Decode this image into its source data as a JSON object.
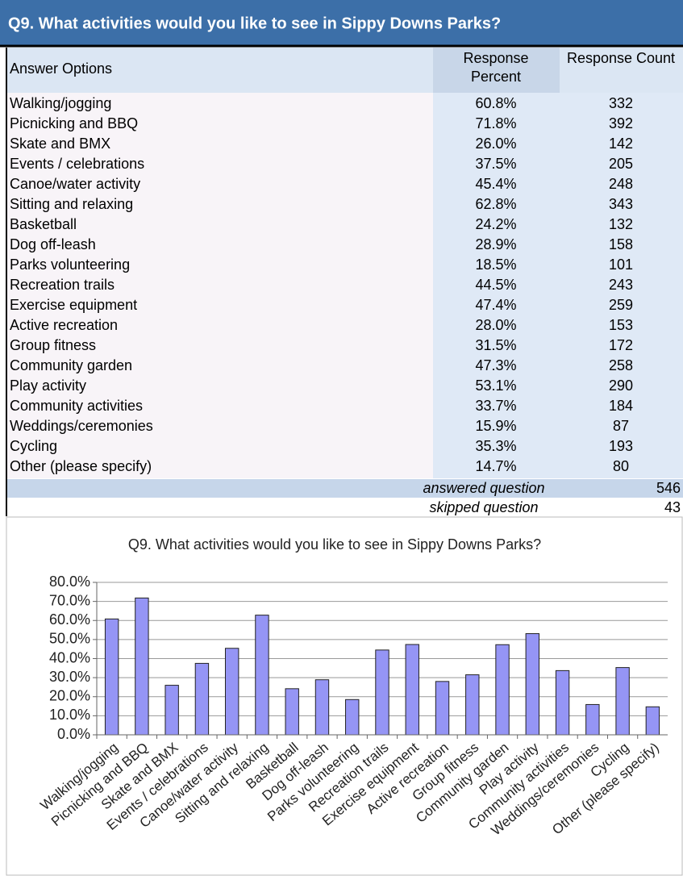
{
  "table": {
    "title": "Q9. What activities would you like to see in Sippy Downs Parks?",
    "headers": [
      "Answer Options",
      "Response Percent",
      "Response Count"
    ],
    "rows": [
      [
        "Walking/jogging",
        "60.8%",
        332
      ],
      [
        "Picnicking and BBQ",
        "71.8%",
        392
      ],
      [
        "Skate and BMX",
        "26.0%",
        142
      ],
      [
        "Events / celebrations",
        "37.5%",
        205
      ],
      [
        "Canoe/water activity",
        "45.4%",
        248
      ],
      [
        "Sitting and relaxing",
        "62.8%",
        343
      ],
      [
        "Basketball",
        "24.2%",
        132
      ],
      [
        "Dog off-leash",
        "28.9%",
        158
      ],
      [
        "Parks volunteering",
        "18.5%",
        101
      ],
      [
        "Recreation trails",
        "44.5%",
        243
      ],
      [
        "Exercise equipment",
        "47.4%",
        259
      ],
      [
        "Active recreation",
        "28.0%",
        153
      ],
      [
        "Group fitness",
        "31.5%",
        172
      ],
      [
        "Community garden",
        "47.3%",
        258
      ],
      [
        "Play activity",
        "53.1%",
        290
      ],
      [
        "Community activities",
        "33.7%",
        184
      ],
      [
        "Weddings/ceremonies",
        "15.9%",
        87
      ],
      [
        "Cycling",
        "35.3%",
        193
      ],
      [
        "Other (please specify)",
        "14.7%",
        80
      ]
    ],
    "footer": [
      [
        "answered question",
        546
      ],
      [
        "skipped question",
        43
      ]
    ]
  },
  "chart_data": {
    "type": "bar",
    "title": "Q9. What activities would you like to see in Sippy Downs Parks?",
    "categories": [
      "Walking/jogging",
      "Picnicking and BBQ",
      "Skate and BMX",
      "Events / celebrations",
      "Canoe/water activity",
      "Sitting and relaxing",
      "Basketball",
      "Dog off-leash",
      "Parks volunteering",
      "Recreation trails",
      "Exercise equipment",
      "Active recreation",
      "Group fitness",
      "Community garden",
      "Play activity",
      "Community activities",
      "Weddings/ceremonies",
      "Cycling",
      "Other (please specify)"
    ],
    "values": [
      60.8,
      71.8,
      26.0,
      37.5,
      45.4,
      62.8,
      24.2,
      28.9,
      18.5,
      44.5,
      47.4,
      28.0,
      31.5,
      47.3,
      53.1,
      33.7,
      15.9,
      35.3,
      14.7
    ],
    "color": "#9595f5",
    "ylim": [
      0,
      80
    ],
    "yticks": [
      {
        "value": 0,
        "label": "0.0%"
      },
      {
        "value": 10,
        "label": "10.0%"
      },
      {
        "value": 20,
        "label": "20.0%"
      },
      {
        "value": 30,
        "label": "30.0%"
      },
      {
        "value": 40,
        "label": "40.0%"
      },
      {
        "value": 50,
        "label": "50.0%"
      },
      {
        "value": 60,
        "label": "60.0%"
      },
      {
        "value": 70,
        "label": "70.0%"
      },
      {
        "value": 80,
        "label": "80.0%"
      }
    ],
    "grid": true
  }
}
